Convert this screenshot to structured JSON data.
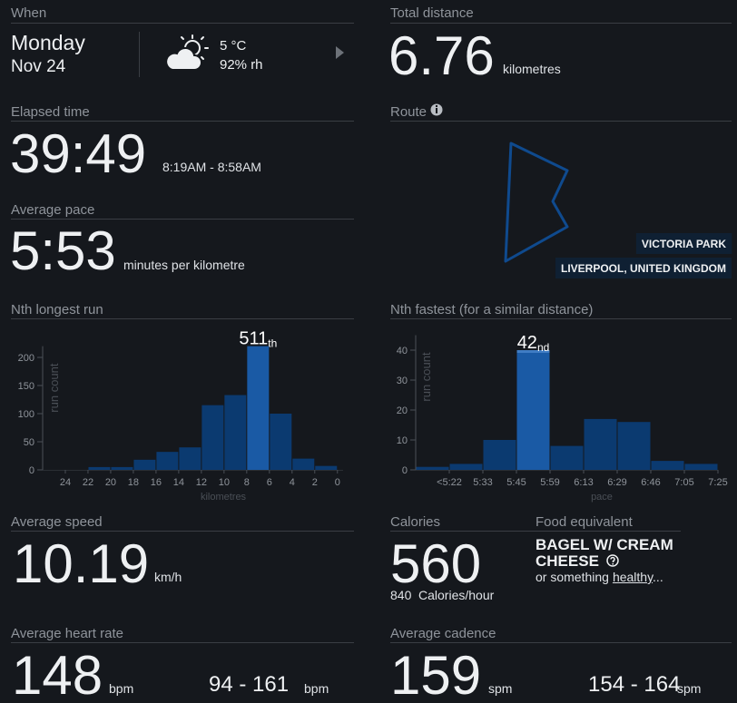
{
  "when": {
    "title": "When",
    "day": "Monday",
    "date": "Nov 24",
    "temperature": "5 °C",
    "humidity": "92% rh"
  },
  "total_distance": {
    "title": "Total distance",
    "value": "6.76",
    "unit": "kilometres"
  },
  "elapsed_time": {
    "title": "Elapsed time",
    "value": "39:49",
    "range": "8:19AM - 8:58AM"
  },
  "route": {
    "title": "Route",
    "park": "VICTORIA PARK",
    "location": "LIVERPOOL, UNITED KINGDOM"
  },
  "average_pace": {
    "title": "Average pace",
    "value": "5:53",
    "unit": "minutes per kilometre"
  },
  "average_speed": {
    "title": "Average speed",
    "value": "10.19",
    "unit": "km/h"
  },
  "calories": {
    "title": "Calories",
    "value": "560",
    "rate": "840",
    "rate_unit": "Calories/hour"
  },
  "food_equivalent": {
    "title": "Food equivalent",
    "food": "BAGEL W/ CREAM CHEESE",
    "note": "or something",
    "link": "healthy",
    "ellipsis": "..."
  },
  "average_heart_rate": {
    "title": "Average heart rate",
    "value": "148",
    "unit": "bpm",
    "range": "94 - 161",
    "range_unit": "bpm"
  },
  "average_cadence": {
    "title": "Average cadence",
    "value": "159",
    "unit": "spm",
    "range": "154 - 164",
    "range_unit": "spm"
  },
  "chart_data": [
    {
      "type": "histogram",
      "title": "Nth longest run",
      "y_label": "run count",
      "x_label": "kilometres",
      "bins": [
        22,
        20,
        18,
        16,
        14,
        12,
        10,
        8,
        6,
        4,
        2,
        0
      ],
      "values": [
        5,
        5,
        18,
        32,
        40,
        115,
        133,
        220,
        100,
        20,
        7
      ],
      "color": "#0b3a70",
      "highlight_index": 7,
      "highlight_color": "#1a5aa5",
      "annotation": "511",
      "annotation_suffix": "th",
      "xlim": [
        26,
        -0.5
      ],
      "xticks": [
        24,
        22,
        20,
        18,
        16,
        14,
        12,
        10,
        8,
        6,
        4,
        2,
        0
      ],
      "ylim": [
        0,
        220
      ],
      "yticks": [
        0,
        50,
        100,
        150,
        200
      ]
    },
    {
      "type": "bar",
      "title": "Nth fastest (for a similar distance)",
      "y_label": "run count",
      "x_label": "pace",
      "categories": [
        "<5:22",
        "5:33",
        "5:45",
        "5:59",
        "6:13",
        "6:29",
        "6:46",
        "7:05",
        "7:25"
      ],
      "values": [
        1,
        2,
        10,
        40,
        8,
        17,
        16,
        3,
        2
      ],
      "color": "#0b3a70",
      "highlight_index": 3,
      "highlight_color": "#1a5aa5",
      "annotation": "42",
      "annotation_suffix": "nd",
      "ylim": [
        0,
        45
      ],
      "yticks": [
        0,
        10,
        20,
        30,
        40
      ]
    }
  ]
}
